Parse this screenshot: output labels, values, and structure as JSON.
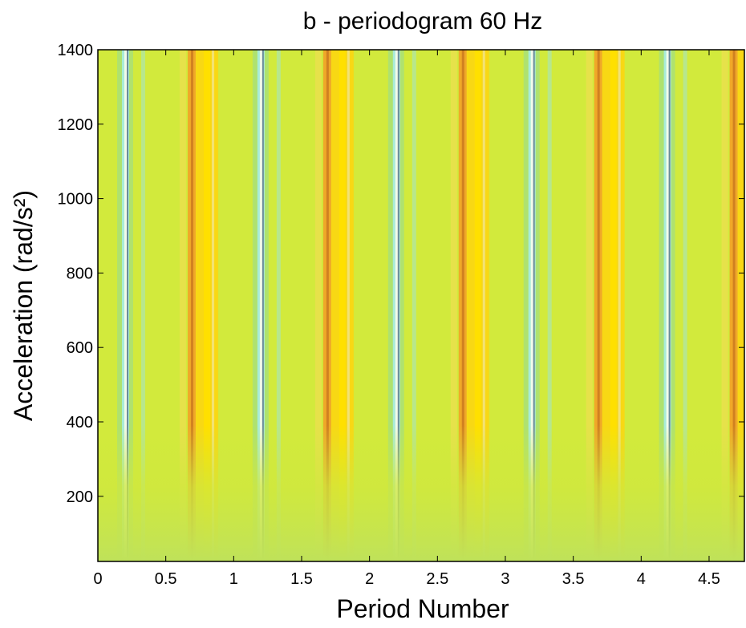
{
  "chart_data": {
    "type": "heatmap",
    "title": "b - periodogram 60 Hz",
    "x_label": "Period Number",
    "y_label": "Acceleration (rad/s²)",
    "xlim": [
      0,
      4.76
    ],
    "ylim": [
      25,
      1400
    ],
    "xticks": [
      0,
      0.5,
      1,
      1.5,
      2,
      2.5,
      3,
      3.5,
      4,
      4.5
    ],
    "yticks": [
      200,
      400,
      600,
      800,
      1000,
      1200,
      1400
    ]
  }
}
